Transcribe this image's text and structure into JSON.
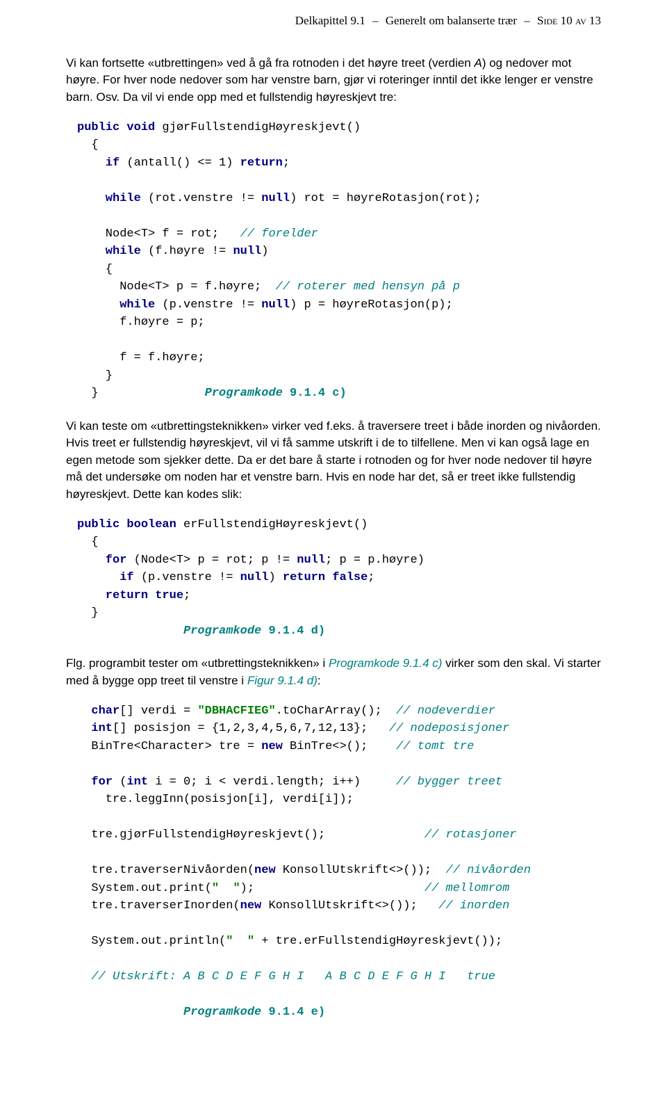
{
  "header": {
    "chapter": "Delkapittel 9.1",
    "title": "Generelt om balanserte trær",
    "page": "Side 10 av 13"
  },
  "para1": {
    "t1": "Vi kan fortsette «utbrettingen» ved å gå fra rotnoden i det høyre treet (verdien ",
    "var": "A",
    "t2": ") og nedover mot høyre. For hver node nedover som har venstre barn, gjør vi roteringer inntil det ikke lenger er venstre barn. Osv. Da vil vi ende opp med et fullstendig høyreskjevt tre:"
  },
  "code1": {
    "l01a": "public",
    "l01b": " void",
    "l01c": " gjørFullstendigHøyreskjevt()",
    "l02": "  {",
    "l03a": "    if",
    "l03b": " (antall() <= 1) ",
    "l03c": "return",
    "l03d": ";",
    "blank1": "",
    "l04a": "    while",
    "l04b": " (rot.venstre != ",
    "l04c": "null",
    "l04d": ") rot = høyreRotasjon(rot);",
    "blank2": "",
    "l05a": "    Node<T> f = rot;   ",
    "l05b": "// forelder",
    "l06a": "    while",
    "l06b": " (f.høyre != ",
    "l06c": "null",
    "l06d": ")",
    "l07": "    {",
    "l08a": "      Node<T> p = f.høyre;  ",
    "l08b": "// roterer med hensyn på p",
    "l09a": "      while",
    "l09b": " (p.venstre != ",
    "l09c": "null",
    "l09d": ") p = høyreRotasjon(p);",
    "l10": "      f.høyre = p;",
    "blank3": "",
    "l11": "      f = f.høyre;",
    "l12": "    }",
    "l13a": "  }               ",
    "l13b": "Programkode",
    "l13c": " 9.1.4 c)"
  },
  "para2": "Vi kan teste om «utbrettingsteknikken» virker ved f.eks. å traversere treet i både inorden og nivåorden. Hvis treet er fullstendig høyreskjevt, vil vi få samme utskrift i de to tilfellene. Men vi kan også lage en egen metode som sjekker dette. Da er det bare å starte i rotnoden og for hver node nedover til høyre må det undersøke om noden har et venstre barn. Hvis en node har det, så er treet ikke fullstendig høyreskjevt. Dette kan kodes slik:",
  "code2": {
    "l01a": "public",
    "l01b": " boolean",
    "l01c": " erFullstendigHøyreskjevt()",
    "l02": "  {",
    "l03a": "    for",
    "l03b": " (Node<T> p = rot; p != ",
    "l03c": "null",
    "l03d": "; p = p.høyre)",
    "l04a": "      if",
    "l04b": " (p.venstre != ",
    "l04c": "null",
    "l04d": ") ",
    "l04e": "return false",
    "l04f": ";",
    "l05a": "    return true",
    "l05b": ";",
    "l06": "  }",
    "l07a": "               ",
    "l07b": "Programkode",
    "l07c": " 9.1.4 d)"
  },
  "para3": {
    "t1": "Flg. programbit tester om «utbrettingsteknikken» i ",
    "ref1": "Programkode 9.1.4 c)",
    "t2": " virker som den skal. Vi starter med å bygge opp treet til venstre i ",
    "ref2": "Figur 9.1.4 d)",
    "t3": ":"
  },
  "code3": {
    "l01a": "  char",
    "l01b": "[] verdi = ",
    "l01c": "\"DBHACFIEG\"",
    "l01d": ".toCharArray();  ",
    "l01e": "// nodeverdier",
    "l02a": "  int",
    "l02b": "[] posisjon = {1,2,3,4,5,6,7,12,13};   ",
    "l02c": "// nodeposisjoner",
    "l03a": "  BinTre<Character> tre = ",
    "l03b": "new",
    "l03c": " BinTre<>();    ",
    "l03d": "// tomt tre",
    "blank1": "",
    "l04a": "  for",
    "l04b": " (",
    "l04c": "int",
    "l04d": " i = 0; i < verdi.length; i++)     ",
    "l04e": "// bygger treet",
    "l05": "    tre.leggInn(posisjon[i], verdi[i]);",
    "blank2": "",
    "l06a": "  tre.gjørFullstendigHøyreskjevt();              ",
    "l06b": "// rotasjoner",
    "blank3": "",
    "l07a": "  tre.traverserNivåorden(",
    "l07b": "new",
    "l07c": " KonsollUtskrift<>());  ",
    "l07d": "// nivåorden",
    "l08a": "  System.out.print(",
    "l08b": "\"  \"",
    "l08c": ");                        ",
    "l08d": "// mellomrom",
    "l09a": "  tre.traverserInorden(",
    "l09b": "new",
    "l09c": " KonsollUtskrift<>());   ",
    "l09d": "// inorden",
    "blank4": "",
    "l10a": "  System.out.println(",
    "l10b": "\"  \"",
    "l10c": " + tre.erFullstendigHøyreskjevt());",
    "blank5": "",
    "l11": "  // Utskrift: A B C D E F G H I   A B C D E F G H I   true",
    "blank6": "",
    "l12a": "               ",
    "l12b": "Programkode",
    "l12c": " 9.1.4 e)"
  }
}
